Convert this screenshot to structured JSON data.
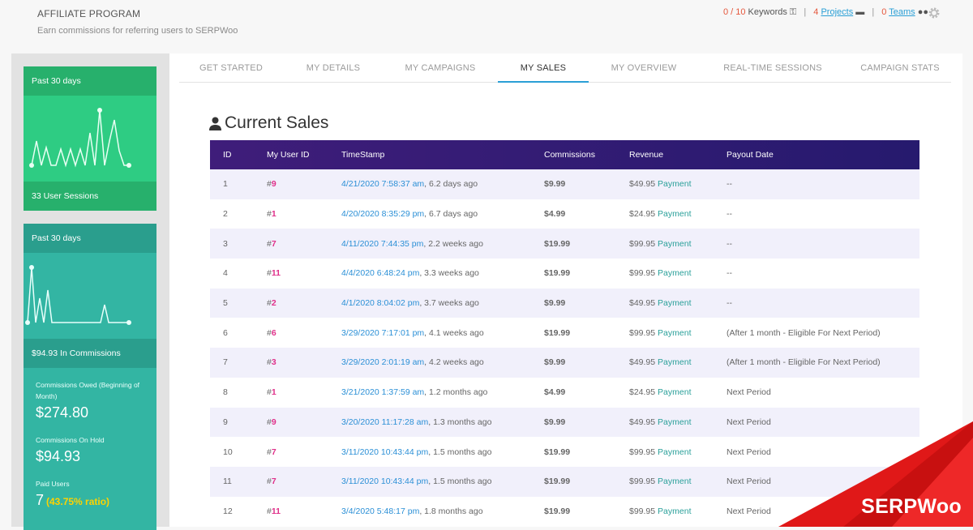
{
  "header": {
    "title": "AFFILIATE PROGRAM",
    "subtitle": "Earn commissions for referring users to SERPWoo",
    "keywords_used": "0 / 10",
    "keywords_label": "Keywords",
    "projects_count": "4",
    "projects_label": "Projects",
    "teams_count": "0",
    "teams_label": "Teams"
  },
  "sidebar": {
    "sessions_card": {
      "header": "Past 30 days",
      "footer": "33 User Sessions"
    },
    "commissions_card": {
      "header": "Past 30 days",
      "footer": "$94.93 In Commissions"
    },
    "stats": [
      {
        "label": "Commissions Owed (Beginning of Month)",
        "value": "$274.80"
      },
      {
        "label": "Commissions On Hold",
        "value": "$94.93"
      },
      {
        "label": "Paid Users",
        "value": "7",
        "ratio": "(43.75% ratio)"
      }
    ]
  },
  "tabs": [
    {
      "label": "GET STARTED"
    },
    {
      "label": "MY DETAILS"
    },
    {
      "label": "MY CAMPAIGNS"
    },
    {
      "label": "MY SALES",
      "active": true
    },
    {
      "label": "MY OVERVIEW"
    },
    {
      "label": "REAL-TIME SESSIONS"
    },
    {
      "label": "CAMPAIGN STATS"
    }
  ],
  "section_title": "Current Sales",
  "table": {
    "headers": [
      "ID",
      "My User ID",
      "TimeStamp",
      "Commissions",
      "Revenue",
      "Payout Date"
    ],
    "rows": [
      {
        "id": "1",
        "uid": "9",
        "ts": "4/21/2020 7:58:37 am",
        "ago": ", 6.2 days ago",
        "com": "$9.99",
        "rev": "$49.95",
        "pay": "Payment",
        "payout": "--",
        "ptype": "dash"
      },
      {
        "id": "2",
        "uid": "1",
        "ts": "4/20/2020 8:35:29 pm",
        "ago": ", 6.7 days ago",
        "com": "$4.99",
        "rev": "$24.95",
        "pay": "Payment",
        "payout": "--",
        "ptype": "dash"
      },
      {
        "id": "3",
        "uid": "7",
        "ts": "4/11/2020 7:44:35 pm",
        "ago": ", 2.2 weeks ago",
        "com": "$19.99",
        "rev": "$99.95",
        "pay": "Payment",
        "payout": "--",
        "ptype": "dash"
      },
      {
        "id": "4",
        "uid": "11",
        "ts": "4/4/2020 6:48:24 pm",
        "ago": ", 3.3 weeks ago",
        "com": "$19.99",
        "rev": "$99.95",
        "pay": "Payment",
        "payout": "--",
        "ptype": "dash"
      },
      {
        "id": "5",
        "uid": "2",
        "ts": "4/1/2020 8:04:02 pm",
        "ago": ", 3.7 weeks ago",
        "com": "$9.99",
        "rev": "$49.95",
        "pay": "Payment",
        "payout": "--",
        "ptype": "dash"
      },
      {
        "id": "6",
        "uid": "6",
        "ts": "3/29/2020 7:17:01 pm",
        "ago": ", 4.1 weeks ago",
        "com": "$19.99",
        "rev": "$99.95",
        "pay": "Payment",
        "payout": "(After 1 month - Eligible For Next Period)",
        "ptype": "eligible"
      },
      {
        "id": "7",
        "uid": "3",
        "ts": "3/29/2020 2:01:19 am",
        "ago": ", 4.2 weeks ago",
        "com": "$9.99",
        "rev": "$49.95",
        "pay": "Payment",
        "payout": "(After 1 month - Eligible For Next Period)",
        "ptype": "eligible"
      },
      {
        "id": "8",
        "uid": "1",
        "ts": "3/21/2020 1:37:59 am",
        "ago": ", 1.2 months ago",
        "com": "$4.99",
        "rev": "$24.95",
        "pay": "Payment",
        "payout": "Next Period",
        "ptype": "next"
      },
      {
        "id": "9",
        "uid": "9",
        "ts": "3/20/2020 11:17:28 am",
        "ago": ", 1.3 months ago",
        "com": "$9.99",
        "rev": "$49.95",
        "pay": "Payment",
        "payout": "Next Period",
        "ptype": "next"
      },
      {
        "id": "10",
        "uid": "7",
        "ts": "3/11/2020 10:43:44 pm",
        "ago": ", 1.5 months ago",
        "com": "$19.99",
        "rev": "$99.95",
        "pay": "Payment",
        "payout": "Next Period",
        "ptype": "next"
      },
      {
        "id": "11",
        "uid": "7",
        "ts": "3/11/2020 10:43:44 pm",
        "ago": ", 1.5 months ago",
        "com": "$19.99",
        "rev": "$99.95",
        "pay": "Payment",
        "payout": "Next Period",
        "ptype": "next"
      },
      {
        "id": "12",
        "uid": "11",
        "ts": "3/4/2020 5:48:17 pm",
        "ago": ", 1.8 months ago",
        "com": "$19.99",
        "rev": "$99.95",
        "pay": "Payment",
        "payout": "Next Period",
        "ptype": "next"
      }
    ]
  },
  "watermark": "SERPWoo",
  "colors": {
    "header_start": "#3f1d7a",
    "header_end": "#261a6e",
    "accent": "#2a9fd6",
    "watermark": "#e01818"
  }
}
